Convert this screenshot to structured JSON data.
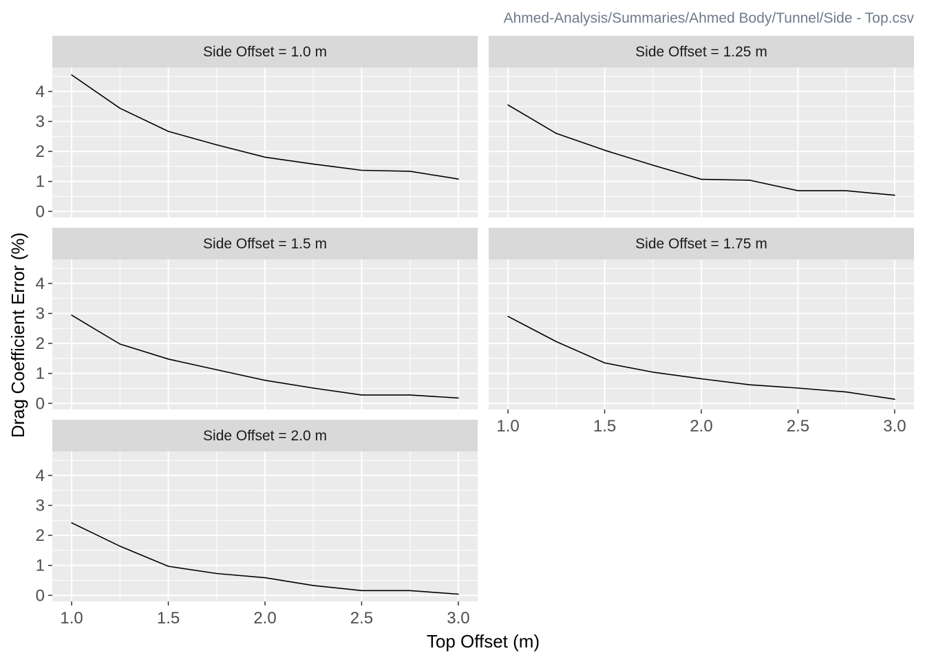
{
  "chart_data": {
    "type": "line",
    "caption": "Ahmed-Analysis/Summaries/Ahmed Body/Tunnel/Side - Top.csv",
    "xlabel": "Top Offset (m)",
    "ylabel": "Drag Coefficient Error (%)",
    "xlim": [
      0.9,
      3.1
    ],
    "ylim": [
      -0.2,
      4.8
    ],
    "x_ticks": [
      "1.0",
      "1.5",
      "2.0",
      "2.5",
      "3.0"
    ],
    "x_tick_values": [
      1.0,
      1.5,
      2.0,
      2.5,
      3.0
    ],
    "y_ticks": [
      "0",
      "1",
      "2",
      "3",
      "4"
    ],
    "y_tick_values": [
      0,
      1,
      2,
      3,
      4
    ],
    "x_minor_values": [
      1.25,
      1.75,
      2.25,
      2.75
    ],
    "y_minor_values": [
      0.5,
      1.5,
      2.5,
      3.5,
      4.5
    ],
    "grid": true,
    "line_color": "#000000",
    "panel_background": "#ebebeb",
    "strip_background": "#d9d9d9",
    "grid_color": "#ffffff",
    "facets": [
      {
        "label": "Side Offset =  1.0 m",
        "x": [
          1.0,
          1.25,
          1.5,
          1.75,
          2.0,
          2.25,
          2.5,
          2.75,
          3.0
        ],
        "y": [
          4.55,
          3.44,
          2.67,
          2.22,
          1.81,
          1.58,
          1.37,
          1.34,
          1.08
        ]
      },
      {
        "label": "Side Offset =  1.25 m",
        "x": [
          1.0,
          1.25,
          1.5,
          1.75,
          2.0,
          2.25,
          2.5,
          2.75,
          3.0
        ],
        "y": [
          3.55,
          2.6,
          2.04,
          1.54,
          1.07,
          1.04,
          0.69,
          0.69,
          0.54
        ]
      },
      {
        "label": "Side Offset =  1.5 m",
        "x": [
          1.0,
          1.25,
          1.5,
          1.75,
          2.0,
          2.25,
          2.5,
          2.75,
          3.0
        ],
        "y": [
          2.94,
          1.98,
          1.48,
          1.12,
          0.77,
          0.51,
          0.28,
          0.28,
          0.18
        ]
      },
      {
        "label": "Side Offset =  1.75 m",
        "x": [
          1.0,
          1.25,
          1.5,
          1.75,
          2.0,
          2.25,
          2.5,
          2.75,
          3.0
        ],
        "y": [
          2.9,
          2.06,
          1.35,
          1.04,
          0.82,
          0.62,
          0.51,
          0.38,
          0.14
        ]
      },
      {
        "label": "Side Offset =  2.0 m",
        "x": [
          1.0,
          1.25,
          1.5,
          1.75,
          2.0,
          2.25,
          2.5,
          2.75,
          3.0
        ],
        "y": [
          2.42,
          1.64,
          0.97,
          0.73,
          0.59,
          0.33,
          0.16,
          0.16,
          0.04
        ]
      }
    ]
  }
}
